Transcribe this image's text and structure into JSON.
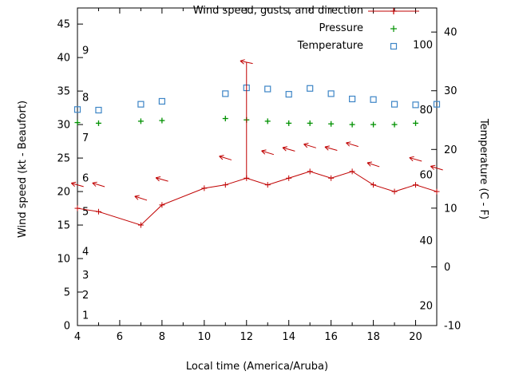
{
  "chart_data": {
    "type": "line",
    "title": "",
    "background": "#ffffff",
    "axis_color": "#000000",
    "legend_position": "top-right-inside",
    "x_axis": {
      "label": "Local time (America/Aruba)",
      "min": 4,
      "max": 21,
      "ticks": [
        4,
        6,
        8,
        10,
        12,
        14,
        16,
        18,
        20
      ]
    },
    "left_axis": {
      "label": "Wind speed (kt - Beaufort)",
      "min": 0,
      "max": 47.4,
      "ticks": [
        0,
        5,
        10,
        15,
        20,
        25,
        30,
        35,
        40,
        45
      ],
      "beaufort_scale_labels": [
        {
          "beaufort": 1,
          "kt": 1.5
        },
        {
          "beaufort": 2,
          "kt": 4.5
        },
        {
          "beaufort": 3,
          "kt": 7.5
        },
        {
          "beaufort": 4,
          "kt": 11
        },
        {
          "beaufort": 5,
          "kt": 17
        },
        {
          "beaufort": 6,
          "kt": 22
        },
        {
          "beaufort": 7,
          "kt": 28
        },
        {
          "beaufort": 8,
          "kt": 34
        },
        {
          "beaufort": 9,
          "kt": 41
        }
      ]
    },
    "right_axis": {
      "label": "Temperature (C - F)",
      "min": -10,
      "max": 44.1,
      "ticks": [
        -10,
        0,
        10,
        20,
        30,
        40
      ],
      "fahrenheit_scale_labels": [
        {
          "f": 20,
          "c": -6.7
        },
        {
          "f": 40,
          "c": 4.4
        },
        {
          "f": 60,
          "c": 15.6
        },
        {
          "f": 80,
          "c": 26.7
        },
        {
          "f": 100,
          "c": 37.8
        }
      ]
    },
    "series": {
      "wind": {
        "name": "Wind speed, gusts, and direction",
        "color": "#c00000",
        "marker": "plus-line",
        "hours": [
          4,
          5,
          7,
          8,
          10,
          11,
          12,
          13,
          14,
          15,
          16,
          17,
          18,
          19,
          20,
          21
        ],
        "speed_kt": [
          17.5,
          17,
          15,
          18,
          20.5,
          21,
          22,
          21,
          22,
          23,
          22,
          23,
          21,
          20,
          21,
          20
        ],
        "gust_spike": {
          "hour": 12,
          "from_kt": 22,
          "to_kt": 39.3
        },
        "direction_arrows": [
          {
            "hour": 4,
            "kt": 21,
            "angle_deg": 196
          },
          {
            "hour": 5,
            "kt": 21,
            "angle_deg": 197
          },
          {
            "hour": 7,
            "kt": 19,
            "angle_deg": 198
          },
          {
            "hour": 8,
            "kt": 21.8,
            "angle_deg": 196
          },
          {
            "hour": 11,
            "kt": 25,
            "angle_deg": 197
          },
          {
            "hour": 12,
            "kt": 39.3,
            "angle_deg": 192
          },
          {
            "hour": 13,
            "kt": 25.8,
            "angle_deg": 197
          },
          {
            "hour": 14,
            "kt": 26.3,
            "angle_deg": 196
          },
          {
            "hour": 15,
            "kt": 26.8,
            "angle_deg": 197
          },
          {
            "hour": 16,
            "kt": 26.4,
            "angle_deg": 196
          },
          {
            "hour": 17,
            "kt": 27,
            "angle_deg": 197
          },
          {
            "hour": 18,
            "kt": 24,
            "angle_deg": 198
          },
          {
            "hour": 20,
            "kt": 24.8,
            "angle_deg": 196
          },
          {
            "hour": 21,
            "kt": 23.5,
            "angle_deg": 197
          }
        ]
      },
      "pressure": {
        "name": "Pressure",
        "color": "#009100",
        "marker": "plus",
        "hours": [
          4,
          5,
          7,
          8,
          11,
          12,
          13,
          14,
          15,
          16,
          17,
          18,
          19,
          20
        ],
        "values_left_axis": [
          30.3,
          30.2,
          30.5,
          30.6,
          30.9,
          30.7,
          30.5,
          30.2,
          30.2,
          30.1,
          30.0,
          30.0,
          30.0,
          30.2
        ]
      },
      "temperature": {
        "name": "Temperature",
        "color": "#3d85c6",
        "marker": "open-square",
        "hours": [
          4,
          5,
          7,
          8,
          11,
          12,
          13,
          14,
          15,
          16,
          17,
          18,
          19,
          20,
          21
        ],
        "celsius": [
          26.8,
          26.7,
          27.7,
          28.2,
          29.5,
          30.5,
          30.3,
          29.4,
          30.4,
          29.5,
          28.6,
          28.5,
          27.7,
          27.6,
          27.7
        ]
      }
    }
  }
}
